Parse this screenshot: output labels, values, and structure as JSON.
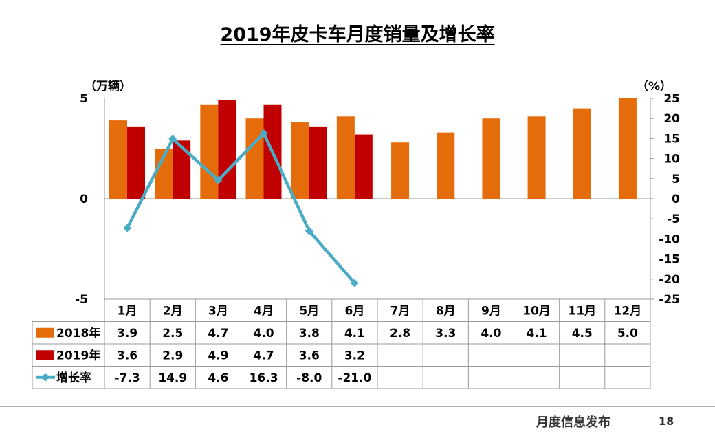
{
  "title": "2019年皮卡车月度销量及增长率",
  "footer": {
    "text": "月度信息发布",
    "page": "18"
  },
  "colors": {
    "s2018": "#E46C0A",
    "s2019": "#C00000",
    "growth": "#4BACC6"
  },
  "chart_data": {
    "type": "bar",
    "title": "2019年皮卡车月度销量及增长率",
    "categories": [
      "1月",
      "2月",
      "3月",
      "4月",
      "5月",
      "6月",
      "7月",
      "8月",
      "9月",
      "10月",
      "11月",
      "12月"
    ],
    "left_axis": {
      "unit": "（万辆）",
      "range": [
        -5,
        5
      ],
      "ticks": [
        "5",
        "0",
        "-5"
      ]
    },
    "right_axis": {
      "unit": "（%）",
      "range": [
        -25,
        25
      ],
      "ticks": [
        "25",
        "20",
        "15",
        "10",
        "5",
        "0",
        "-5",
        "-10",
        "-15",
        "-20",
        "-25"
      ]
    },
    "series": [
      {
        "name": "2018年",
        "type": "bar",
        "axis": "left",
        "values": [
          3.9,
          2.5,
          4.7,
          4.0,
          3.8,
          4.1,
          2.8,
          3.3,
          4.0,
          4.1,
          4.5,
          5.0
        ],
        "labels": [
          "3.9",
          "2.5",
          "4.7",
          "4.0",
          "3.8",
          "4.1",
          "2.8",
          "3.3",
          "4.0",
          "4.1",
          "4.5",
          "5.0"
        ]
      },
      {
        "name": "2019年",
        "type": "bar",
        "axis": "left",
        "values": [
          3.6,
          2.9,
          4.9,
          4.7,
          3.6,
          3.2,
          null,
          null,
          null,
          null,
          null,
          null
        ],
        "labels": [
          "3.6",
          "2.9",
          "4.9",
          "4.7",
          "3.6",
          "3.2",
          "",
          "",
          "",
          "",
          "",
          ""
        ]
      },
      {
        "name": "增长率",
        "type": "line",
        "axis": "right",
        "values": [
          -7.3,
          14.9,
          4.6,
          16.3,
          -8.0,
          -21.0,
          null,
          null,
          null,
          null,
          null,
          null
        ],
        "labels": [
          "-7.3",
          "14.9",
          "4.6",
          "16.3",
          "-8.0",
          "-21.0",
          "",
          "",
          "",
          "",
          "",
          ""
        ]
      }
    ],
    "grid": false,
    "legend": "data-table"
  }
}
